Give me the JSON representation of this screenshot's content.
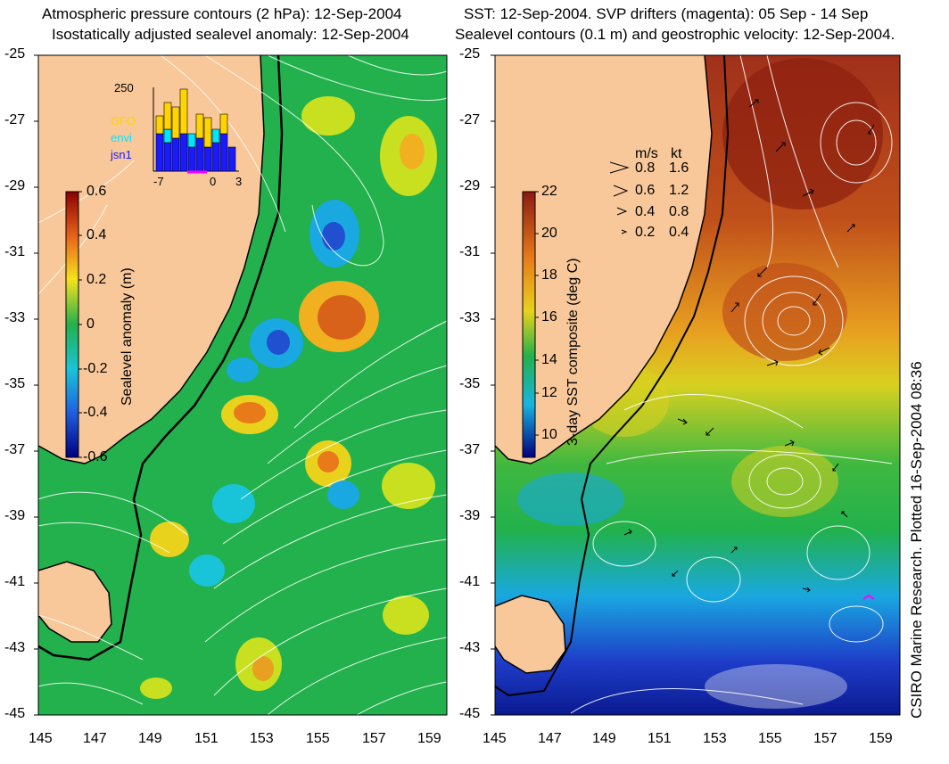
{
  "left_panel": {
    "title_line1": "Atmospheric pressure contours (2 hPa): 12-Sep-2004",
    "title_line2": "Isostatically adjusted sealevel anomaly: 12-Sep-2004",
    "colorbar_label": "Sealevel anomaly (m)",
    "colorbar_ticks": [
      "0.6",
      "0.4",
      "0.2",
      "0",
      "-0.2",
      "-0.4",
      "-0.6"
    ],
    "inset": {
      "ymax_label": "250",
      "legend": [
        {
          "label": "GFO",
          "color": "#ffd400"
        },
        {
          "label": "envi",
          "color": "#00e5ff"
        },
        {
          "label": "jsn1",
          "color": "#1a1aff"
        }
      ],
      "x_ticks": [
        "-7",
        "0",
        "3"
      ]
    }
  },
  "right_panel": {
    "title_line1": "SST: 12-Sep-2004. SVP drifters (magenta): 05 Sep - 14 Sep",
    "title_line2": "Sealevel contours (0.1 m) and geostrophic velocity: 12-Sep-2004.",
    "colorbar_label": "3-day SST composite (deg C)",
    "colorbar_ticks": [
      "22",
      "20",
      "18",
      "16",
      "14",
      "12",
      "10"
    ],
    "velocity_legend": {
      "header_ms": "m/s",
      "header_kt": "kt",
      "rows": [
        {
          "ms": "0.8",
          "kt": "1.6"
        },
        {
          "ms": "0.6",
          "kt": "1.2"
        },
        {
          "ms": "0.4",
          "kt": "0.8"
        },
        {
          "ms": "0.2",
          "kt": "0.4"
        }
      ]
    },
    "credit": "CSIRO Marine Research. Plotted 16-Sep-2004 08:36"
  },
  "lat_ticks": [
    "-25",
    "-27",
    "-29",
    "-31",
    "-33",
    "-35",
    "-37",
    "-39",
    "-41",
    "-43",
    "-45"
  ],
  "lon_ticks": [
    "145",
    "147",
    "149",
    "151",
    "153",
    "155",
    "157",
    "159"
  ],
  "colors": {
    "land": "#f8c89a",
    "sla_background": "#22b14c",
    "sst_warm": "#c0501a",
    "sst_cool": "#1e4fd8"
  }
}
